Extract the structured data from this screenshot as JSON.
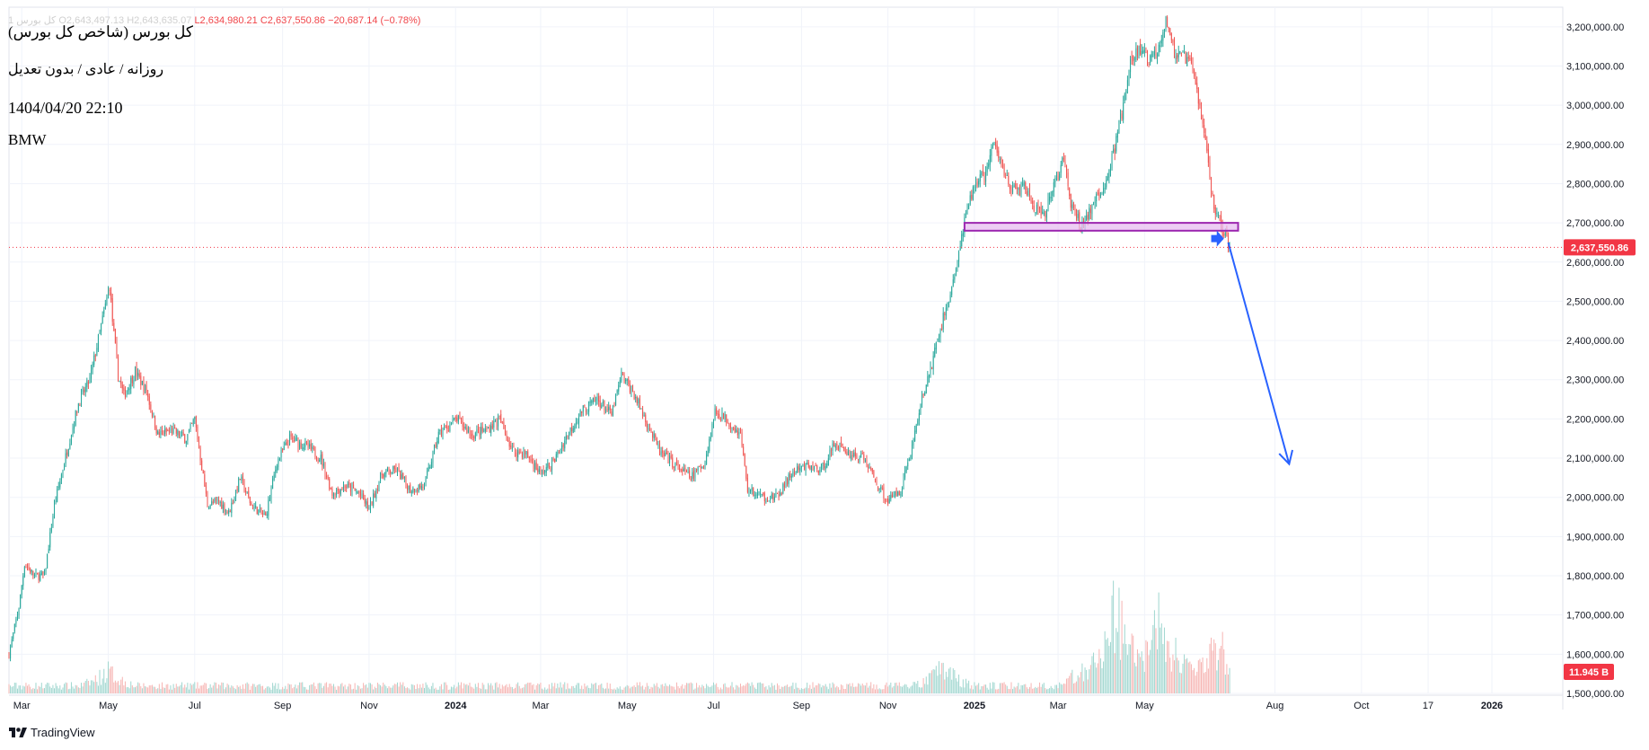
{
  "legend": {
    "symbol": "کل بورس",
    "ohlc_prefix": "1  O2,643,497.13  H2,643,635.07",
    "low": "L2,634,980.21",
    "close": "C2,637,550.86",
    "change": "−20,687.14 (−0.78%)"
  },
  "meta": {
    "title": "کل بورس (شاخص کل بورس)",
    "subtitle": "روزانه / عادی / بدون تعدیل",
    "datetime": "1404/04/20 22:10",
    "watermark": "BMW"
  },
  "brand": "TradingView",
  "colors": {
    "up": "#26a69a",
    "down": "#ef5350",
    "volume_up": "#9fd6cf",
    "volume_down": "#f6b4b2",
    "price_line": "#f23645",
    "zone_fill": "#e7bdf0",
    "zone_border": "#9c27b0",
    "arrow": "#2962ff",
    "grid": "#f0f3fa"
  },
  "chart_data": {
    "type": "candlestick",
    "title": "کل بورس (شاخص کل بورس)",
    "interval": "daily",
    "last_price": 2637550.86,
    "last_price_label": "2,637,550.86",
    "volume_label": "11.945 B",
    "y_axis": {
      "position": "right",
      "ylim": [
        1500000,
        3250000
      ],
      "ticks": [
        1500000,
        1600000,
        1700000,
        1800000,
        1900000,
        2000000,
        2100000,
        2200000,
        2300000,
        2400000,
        2500000,
        2600000,
        2700000,
        2800000,
        2900000,
        3000000,
        3100000,
        3200000
      ],
      "tick_labels": [
        "1,500,000.00",
        "1,600,000.00",
        "1,700,000.00",
        "1,800,000.00",
        "1,900,000.00",
        "2,000,000.00",
        "2,100,000.00",
        "2,200,000.00",
        "2,300,000.00",
        "2,400,000.00",
        "2,500,000.00",
        "2,600,000.00",
        "2,700,000.00",
        "2,800,000.00",
        "2,900,000.00",
        "3,000,000.00",
        "3,100,000.00",
        "3,200,000.00"
      ]
    },
    "x_axis": {
      "xlim": [
        "2023-02-20",
        "2026-02-20"
      ],
      "ticks": [
        {
          "label": "Mar",
          "date": "2023-03-01",
          "bold": false
        },
        {
          "label": "May",
          "date": "2023-05-01",
          "bold": false
        },
        {
          "label": "Jul",
          "date": "2023-07-01",
          "bold": false
        },
        {
          "label": "Sep",
          "date": "2023-09-01",
          "bold": false
        },
        {
          "label": "Nov",
          "date": "2023-11-01",
          "bold": false
        },
        {
          "label": "2024",
          "date": "2024-01-01",
          "bold": true
        },
        {
          "label": "Mar",
          "date": "2024-03-01",
          "bold": false
        },
        {
          "label": "May",
          "date": "2024-05-01",
          "bold": false
        },
        {
          "label": "Jul",
          "date": "2024-07-01",
          "bold": false
        },
        {
          "label": "Sep",
          "date": "2024-09-01",
          "bold": false
        },
        {
          "label": "Nov",
          "date": "2024-11-01",
          "bold": false
        },
        {
          "label": "2025",
          "date": "2025-01-01",
          "bold": true
        },
        {
          "label": "Mar",
          "date": "2025-03-01",
          "bold": false
        },
        {
          "label": "May",
          "date": "2025-05-01",
          "bold": false
        },
        {
          "label": "Aug",
          "date": "2025-08-01",
          "bold": false
        },
        {
          "label": "Oct",
          "date": "2025-10-01",
          "bold": false
        },
        {
          "label": "17",
          "date": "2025-11-17",
          "bold": false
        },
        {
          "label": "2026",
          "date": "2026-01-01",
          "bold": true
        }
      ]
    },
    "price_path": [
      [
        "2023-02-20",
        1600000
      ],
      [
        "2023-02-27",
        1720000
      ],
      [
        "2023-03-03",
        1830000
      ],
      [
        "2023-03-10",
        1800000
      ],
      [
        "2023-03-17",
        1800000
      ],
      [
        "2023-03-24",
        1980000
      ],
      [
        "2023-04-02",
        2120000
      ],
      [
        "2023-04-10",
        2240000
      ],
      [
        "2023-04-18",
        2300000
      ],
      [
        "2023-04-25",
        2420000
      ],
      [
        "2023-05-02",
        2540000
      ],
      [
        "2023-05-04",
        2450000
      ],
      [
        "2023-05-08",
        2310000
      ],
      [
        "2023-05-12",
        2260000
      ],
      [
        "2023-05-20",
        2320000
      ],
      [
        "2023-05-28",
        2270000
      ],
      [
        "2023-06-05",
        2160000
      ],
      [
        "2023-06-15",
        2170000
      ],
      [
        "2023-06-25",
        2150000
      ],
      [
        "2023-07-01",
        2200000
      ],
      [
        "2023-07-10",
        1980000
      ],
      [
        "2023-07-18",
        1990000
      ],
      [
        "2023-07-25",
        1960000
      ],
      [
        "2023-08-02",
        2050000
      ],
      [
        "2023-08-10",
        1980000
      ],
      [
        "2023-08-20",
        1950000
      ],
      [
        "2023-08-28",
        2090000
      ],
      [
        "2023-09-06",
        2150000
      ],
      [
        "2023-09-18",
        2130000
      ],
      [
        "2023-09-28",
        2100000
      ],
      [
        "2023-10-06",
        2010000
      ],
      [
        "2023-10-15",
        2030000
      ],
      [
        "2023-10-25",
        2010000
      ],
      [
        "2023-11-01",
        1970000
      ],
      [
        "2023-11-10",
        2060000
      ],
      [
        "2023-11-20",
        2070000
      ],
      [
        "2023-11-30",
        2020000
      ],
      [
        "2023-12-10",
        2030000
      ],
      [
        "2023-12-20",
        2160000
      ],
      [
        "2024-01-02",
        2200000
      ],
      [
        "2024-01-12",
        2160000
      ],
      [
        "2024-01-22",
        2170000
      ],
      [
        "2024-02-01",
        2200000
      ],
      [
        "2024-02-10",
        2120000
      ],
      [
        "2024-02-20",
        2110000
      ],
      [
        "2024-03-01",
        2060000
      ],
      [
        "2024-03-10",
        2090000
      ],
      [
        "2024-03-20",
        2160000
      ],
      [
        "2024-03-30",
        2220000
      ],
      [
        "2024-04-10",
        2250000
      ],
      [
        "2024-04-20",
        2210000
      ],
      [
        "2024-04-27",
        2310000
      ],
      [
        "2024-05-05",
        2270000
      ],
      [
        "2024-05-15",
        2190000
      ],
      [
        "2024-05-25",
        2110000
      ],
      [
        "2024-06-05",
        2080000
      ],
      [
        "2024-06-15",
        2050000
      ],
      [
        "2024-06-25",
        2090000
      ],
      [
        "2024-07-02",
        2220000
      ],
      [
        "2024-07-10",
        2200000
      ],
      [
        "2024-07-20",
        2160000
      ],
      [
        "2024-07-25",
        2020000
      ],
      [
        "2024-08-05",
        2000000
      ],
      [
        "2024-08-15",
        2000000
      ],
      [
        "2024-08-25",
        2060000
      ],
      [
        "2024-09-05",
        2080000
      ],
      [
        "2024-09-15",
        2070000
      ],
      [
        "2024-09-25",
        2140000
      ],
      [
        "2024-10-05",
        2110000
      ],
      [
        "2024-10-15",
        2100000
      ],
      [
        "2024-10-25",
        2030000
      ],
      [
        "2024-11-01",
        1990000
      ],
      [
        "2024-11-10",
        2020000
      ],
      [
        "2024-11-18",
        2130000
      ],
      [
        "2024-11-25",
        2250000
      ],
      [
        "2024-12-02",
        2340000
      ],
      [
        "2024-12-08",
        2430000
      ],
      [
        "2024-12-15",
        2520000
      ],
      [
        "2024-12-20",
        2600000
      ],
      [
        "2024-12-25",
        2700000
      ],
      [
        "2025-01-01",
        2800000
      ],
      [
        "2025-01-08",
        2820000
      ],
      [
        "2025-01-15",
        2900000
      ],
      [
        "2025-01-22",
        2830000
      ],
      [
        "2025-01-29",
        2780000
      ],
      [
        "2025-02-05",
        2790000
      ],
      [
        "2025-02-12",
        2740000
      ],
      [
        "2025-02-19",
        2710000
      ],
      [
        "2025-02-26",
        2800000
      ],
      [
        "2025-03-05",
        2860000
      ],
      [
        "2025-03-10",
        2750000
      ],
      [
        "2025-03-17",
        2690000
      ],
      [
        "2025-03-25",
        2740000
      ],
      [
        "2025-04-01",
        2780000
      ],
      [
        "2025-04-08",
        2860000
      ],
      [
        "2025-04-15",
        2980000
      ],
      [
        "2025-04-22",
        3120000
      ],
      [
        "2025-04-28",
        3140000
      ],
      [
        "2025-05-05",
        3110000
      ],
      [
        "2025-05-12",
        3160000
      ],
      [
        "2025-05-16",
        3230000
      ],
      [
        "2025-05-22",
        3130000
      ],
      [
        "2025-05-29",
        3120000
      ],
      [
        "2025-06-03",
        3100000
      ],
      [
        "2025-06-08",
        3020000
      ],
      [
        "2025-06-14",
        2880000
      ],
      [
        "2025-06-18",
        2760000
      ],
      [
        "2025-06-24",
        2690000
      ],
      [
        "2025-06-30",
        2637551
      ]
    ],
    "volume_peak": [
      [
        "2025-04-10",
        0.55
      ],
      [
        "2025-05-12",
        0.47
      ],
      [
        "2025-06-22",
        0.33
      ],
      [
        "2023-05-01",
        0.15
      ],
      [
        "2024-12-10",
        0.17
      ]
    ],
    "annotations": {
      "support_zone": {
        "x0": "2024-12-25",
        "x1": "2025-07-06",
        "y0": 2680000,
        "y1": 2700000
      },
      "marker_arrow": {
        "x0": "2025-06-17",
        "x1": "2025-06-26",
        "y": 2660000
      },
      "projection_arrow": {
        "x0": "2025-06-29",
        "y0": 2650000,
        "x1": "2025-08-11",
        "y1": 2085000
      }
    }
  }
}
